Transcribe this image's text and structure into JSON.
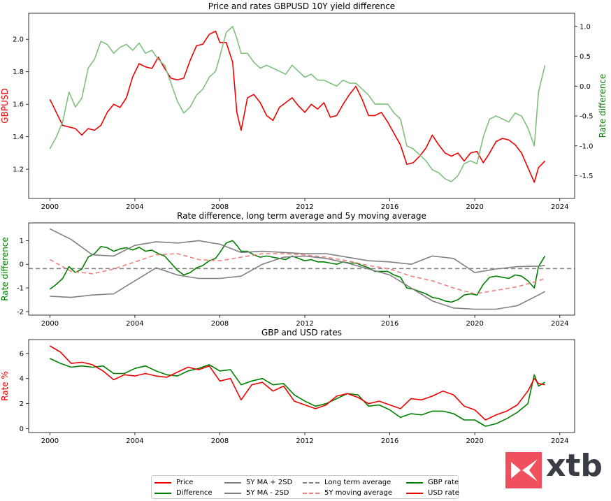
{
  "chart_data": [
    {
      "type": "line",
      "title": "Price and rates GBPUSD 10Y yield difference",
      "ylabel": "GBPUSD",
      "ylabel_right": "Rate difference",
      "xlim": [
        1999.0,
        2024.7
      ],
      "ylim": [
        1.02,
        2.16
      ],
      "ylim_right": [
        -1.88,
        1.22
      ],
      "xticks": [
        2000,
        2004,
        2008,
        2012,
        2016,
        2020,
        2024
      ],
      "yticks": [
        1.2,
        1.4,
        1.6,
        1.8,
        2.0
      ],
      "yticks_right": [
        -1.5,
        -1.0,
        -0.5,
        0.0,
        0.5,
        1.0
      ],
      "series": [
        {
          "name": "Price",
          "axis": "left",
          "color": "#ee0000",
          "x": [
            2000.0,
            2000.3,
            2000.6,
            2000.9,
            2001.2,
            2001.5,
            2001.8,
            2002.1,
            2002.4,
            2002.7,
            2003.0,
            2003.3,
            2003.6,
            2003.9,
            2004.2,
            2004.5,
            2004.8,
            2005.1,
            2005.4,
            2005.7,
            2006.0,
            2006.3,
            2006.6,
            2006.9,
            2007.2,
            2007.5,
            2007.8,
            2008.0,
            2008.3,
            2008.6,
            2008.8,
            2009.0,
            2009.3,
            2009.6,
            2009.9,
            2010.2,
            2010.5,
            2010.8,
            2011.1,
            2011.4,
            2011.7,
            2012.0,
            2012.3,
            2012.6,
            2012.9,
            2013.2,
            2013.5,
            2013.8,
            2014.1,
            2014.4,
            2014.7,
            2015.0,
            2015.3,
            2015.6,
            2015.9,
            2016.2,
            2016.5,
            2016.8,
            2017.1,
            2017.4,
            2017.7,
            2018.0,
            2018.3,
            2018.6,
            2018.9,
            2019.2,
            2019.5,
            2019.8,
            2020.1,
            2020.4,
            2020.7,
            2021.0,
            2021.3,
            2021.6,
            2021.9,
            2022.2,
            2022.5,
            2022.8,
            2023.0,
            2023.3
          ],
          "y": [
            1.63,
            1.55,
            1.47,
            1.46,
            1.45,
            1.41,
            1.45,
            1.44,
            1.47,
            1.55,
            1.6,
            1.58,
            1.64,
            1.77,
            1.85,
            1.83,
            1.82,
            1.89,
            1.82,
            1.76,
            1.75,
            1.76,
            1.87,
            1.96,
            1.97,
            2.03,
            2.05,
            1.98,
            1.98,
            1.86,
            1.55,
            1.44,
            1.64,
            1.66,
            1.61,
            1.53,
            1.5,
            1.58,
            1.61,
            1.64,
            1.59,
            1.55,
            1.6,
            1.57,
            1.61,
            1.52,
            1.53,
            1.6,
            1.66,
            1.71,
            1.63,
            1.53,
            1.53,
            1.55,
            1.49,
            1.42,
            1.35,
            1.23,
            1.24,
            1.28,
            1.33,
            1.41,
            1.35,
            1.3,
            1.28,
            1.3,
            1.25,
            1.3,
            1.31,
            1.24,
            1.3,
            1.37,
            1.39,
            1.38,
            1.35,
            1.3,
            1.21,
            1.12,
            1.21,
            1.25
          ]
        },
        {
          "name": "Rate difference",
          "axis": "right",
          "color": "#7fbf7f",
          "x": [
            2000.0,
            2000.3,
            2000.6,
            2000.9,
            2001.2,
            2001.5,
            2001.8,
            2002.1,
            2002.4,
            2002.7,
            2003.0,
            2003.3,
            2003.6,
            2003.9,
            2004.2,
            2004.5,
            2004.8,
            2005.1,
            2005.4,
            2005.7,
            2006.0,
            2006.3,
            2006.6,
            2006.9,
            2007.2,
            2007.5,
            2007.8,
            2008.0,
            2008.3,
            2008.6,
            2008.8,
            2009.0,
            2009.3,
            2009.6,
            2009.9,
            2010.2,
            2010.5,
            2010.8,
            2011.1,
            2011.4,
            2011.7,
            2012.0,
            2012.3,
            2012.6,
            2012.9,
            2013.2,
            2013.5,
            2013.8,
            2014.1,
            2014.4,
            2014.7,
            2015.0,
            2015.3,
            2015.6,
            2015.9,
            2016.2,
            2016.5,
            2016.8,
            2017.1,
            2017.4,
            2017.7,
            2018.0,
            2018.3,
            2018.6,
            2018.9,
            2019.2,
            2019.5,
            2019.8,
            2020.1,
            2020.4,
            2020.7,
            2021.0,
            2021.3,
            2021.6,
            2021.9,
            2022.2,
            2022.5,
            2022.8,
            2023.0,
            2023.3
          ],
          "y": [
            -1.05,
            -0.85,
            -0.6,
            -0.1,
            -0.35,
            -0.2,
            0.3,
            0.45,
            0.75,
            0.7,
            0.55,
            0.65,
            0.7,
            0.6,
            0.72,
            0.55,
            0.6,
            0.45,
            0.35,
            0.05,
            -0.25,
            -0.45,
            -0.35,
            -0.15,
            -0.05,
            0.15,
            0.25,
            0.5,
            0.9,
            1.0,
            0.8,
            0.55,
            0.55,
            0.4,
            0.3,
            0.35,
            0.3,
            0.25,
            0.2,
            0.35,
            0.25,
            0.15,
            0.2,
            0.1,
            0.1,
            0.05,
            0.0,
            0.1,
            0.05,
            0.05,
            -0.05,
            -0.15,
            -0.3,
            -0.3,
            -0.3,
            -0.45,
            -0.55,
            -1.0,
            -1.05,
            -1.15,
            -1.25,
            -1.4,
            -1.45,
            -1.55,
            -1.6,
            -1.5,
            -1.3,
            -1.25,
            -1.3,
            -0.85,
            -0.55,
            -0.5,
            -0.55,
            -0.6,
            -0.45,
            -0.5,
            -0.7,
            -1.0,
            -0.1,
            0.35
          ]
        }
      ]
    },
    {
      "type": "line",
      "title": "Rate difference, long term average and 5y moving average",
      "ylabel": "Rate difference",
      "xlim": [
        1999.0,
        2024.7
      ],
      "ylim": [
        -2.15,
        1.75
      ],
      "xticks": [
        2000,
        2004,
        2008,
        2012,
        2016,
        2020,
        2024
      ],
      "yticks": [
        -2,
        -1,
        0,
        1
      ],
      "long_term_average": -0.18,
      "series": [
        {
          "name": "Difference",
          "color": "#008000",
          "x": [
            2000.0,
            2000.3,
            2000.6,
            2000.9,
            2001.2,
            2001.5,
            2001.8,
            2002.1,
            2002.4,
            2002.7,
            2003.0,
            2003.3,
            2003.6,
            2003.9,
            2004.2,
            2004.5,
            2004.8,
            2005.1,
            2005.4,
            2005.7,
            2006.0,
            2006.3,
            2006.6,
            2006.9,
            2007.2,
            2007.5,
            2007.8,
            2008.0,
            2008.3,
            2008.6,
            2008.8,
            2009.0,
            2009.3,
            2009.6,
            2009.9,
            2010.2,
            2010.5,
            2010.8,
            2011.1,
            2011.4,
            2011.7,
            2012.0,
            2012.3,
            2012.6,
            2012.9,
            2013.2,
            2013.5,
            2013.8,
            2014.1,
            2014.4,
            2014.7,
            2015.0,
            2015.3,
            2015.6,
            2015.9,
            2016.2,
            2016.5,
            2016.8,
            2017.1,
            2017.4,
            2017.7,
            2018.0,
            2018.3,
            2018.6,
            2018.9,
            2019.2,
            2019.5,
            2019.8,
            2020.1,
            2020.4,
            2020.7,
            2021.0,
            2021.3,
            2021.6,
            2021.9,
            2022.2,
            2022.5,
            2022.8,
            2023.0,
            2023.3
          ],
          "y": [
            -1.05,
            -0.85,
            -0.6,
            -0.1,
            -0.35,
            -0.2,
            0.3,
            0.45,
            0.75,
            0.7,
            0.55,
            0.65,
            0.7,
            0.6,
            0.72,
            0.55,
            0.6,
            0.45,
            0.35,
            0.05,
            -0.25,
            -0.45,
            -0.35,
            -0.15,
            -0.05,
            0.15,
            0.25,
            0.5,
            0.9,
            1.0,
            0.8,
            0.55,
            0.55,
            0.4,
            0.3,
            0.35,
            0.3,
            0.25,
            0.2,
            0.35,
            0.25,
            0.15,
            0.2,
            0.1,
            0.1,
            0.05,
            0.0,
            0.1,
            0.05,
            0.05,
            -0.05,
            -0.15,
            -0.3,
            -0.3,
            -0.3,
            -0.45,
            -0.55,
            -1.0,
            -1.05,
            -1.15,
            -1.25,
            -1.4,
            -1.45,
            -1.55,
            -1.6,
            -1.5,
            -1.3,
            -1.25,
            -1.3,
            -0.85,
            -0.55,
            -0.5,
            -0.55,
            -0.6,
            -0.45,
            -0.5,
            -0.7,
            -1.0,
            -0.1,
            0.35
          ]
        },
        {
          "name": "5Y MA + 2SD",
          "color": "#808080",
          "x": [
            2000,
            2001,
            2002,
            2003,
            2004,
            2005,
            2006,
            2007,
            2008,
            2009,
            2010,
            2011,
            2012,
            2013,
            2014,
            2015,
            2016,
            2017,
            2018,
            2019,
            2020,
            2021,
            2022,
            2023,
            2023.3
          ],
          "y": [
            1.5,
            1.05,
            0.4,
            0.35,
            0.8,
            0.95,
            0.9,
            1.0,
            0.85,
            0.5,
            0.55,
            0.5,
            0.45,
            0.45,
            0.3,
            0.15,
            0.1,
            0.0,
            0.35,
            0.25,
            -0.35,
            -0.2,
            -0.1,
            -0.08,
            -0.05
          ]
        },
        {
          "name": "5Y MA - 2SD",
          "color": "#808080",
          "x": [
            2000,
            2001,
            2002,
            2003,
            2004,
            2005,
            2006,
            2007,
            2008,
            2009,
            2010,
            2011,
            2012,
            2013,
            2014,
            2015,
            2016,
            2017,
            2018,
            2019,
            2020,
            2021,
            2022,
            2023,
            2023.3
          ],
          "y": [
            -1.35,
            -1.4,
            -1.3,
            -1.25,
            -0.7,
            -0.15,
            -0.45,
            -0.6,
            -0.6,
            -0.5,
            0.0,
            0.3,
            0.35,
            0.25,
            0.05,
            -0.2,
            -0.45,
            -1.0,
            -1.55,
            -1.85,
            -1.9,
            -1.9,
            -1.75,
            -1.3,
            -1.15
          ]
        },
        {
          "name": "5Y moving average",
          "color": "#f08080",
          "dashed": true,
          "x": [
            2000,
            2001,
            2002,
            2003,
            2004,
            2005,
            2006,
            2007,
            2008,
            2009,
            2010,
            2011,
            2012,
            2013,
            2014,
            2015,
            2016,
            2017,
            2018,
            2019,
            2020,
            2021,
            2022,
            2023,
            2023.3
          ],
          "y": [
            0.2,
            -0.3,
            -0.4,
            -0.2,
            0.1,
            0.4,
            0.45,
            0.2,
            0.15,
            0.3,
            0.45,
            0.45,
            0.4,
            0.3,
            0.15,
            -0.05,
            -0.2,
            -0.5,
            -0.7,
            -1.0,
            -1.25,
            -1.1,
            -0.95,
            -0.7,
            -0.6
          ]
        }
      ]
    },
    {
      "type": "line",
      "title": "GBP and USD rates",
      "ylabel": "Rate %",
      "xlim": [
        1999.0,
        2024.7
      ],
      "ylim": [
        -0.3,
        7.1
      ],
      "xticks": [
        2000,
        2004,
        2008,
        2012,
        2016,
        2020,
        2024
      ],
      "yticks": [
        0,
        2,
        4,
        6
      ],
      "series": [
        {
          "name": "GBP rate",
          "color": "#008000",
          "x": [
            2000.0,
            2000.5,
            2001.0,
            2001.5,
            2002.0,
            2002.5,
            2003.0,
            2003.5,
            2004.0,
            2004.5,
            2005.0,
            2005.5,
            2006.0,
            2006.5,
            2007.0,
            2007.5,
            2008.0,
            2008.5,
            2009.0,
            2009.5,
            2010.0,
            2010.5,
            2011.0,
            2011.5,
            2012.0,
            2012.5,
            2013.0,
            2013.5,
            2014.0,
            2014.5,
            2015.0,
            2015.5,
            2016.0,
            2016.5,
            2017.0,
            2017.5,
            2018.0,
            2018.5,
            2019.0,
            2019.5,
            2020.0,
            2020.5,
            2021.0,
            2021.5,
            2022.0,
            2022.5,
            2022.8,
            2023.0,
            2023.3
          ],
          "y": [
            5.6,
            5.2,
            4.9,
            5.0,
            4.9,
            5.0,
            4.4,
            4.4,
            4.8,
            5.0,
            4.6,
            4.3,
            4.2,
            4.6,
            4.8,
            5.1,
            4.6,
            4.7,
            3.5,
            3.8,
            4.0,
            3.5,
            3.6,
            2.7,
            2.2,
            1.8,
            2.0,
            2.4,
            2.8,
            2.7,
            1.8,
            1.9,
            1.5,
            0.9,
            1.2,
            1.1,
            1.4,
            1.4,
            1.2,
            0.7,
            0.7,
            0.2,
            0.4,
            0.8,
            1.3,
            2.0,
            4.3,
            3.4,
            3.7
          ]
        },
        {
          "name": "USD rate",
          "color": "#ee0000",
          "x": [
            2000.0,
            2000.5,
            2001.0,
            2001.5,
            2002.0,
            2002.5,
            2003.0,
            2003.5,
            2004.0,
            2004.5,
            2005.0,
            2005.5,
            2006.0,
            2006.5,
            2007.0,
            2007.5,
            2008.0,
            2008.5,
            2009.0,
            2009.5,
            2010.0,
            2010.5,
            2011.0,
            2011.5,
            2012.0,
            2012.5,
            2013.0,
            2013.5,
            2014.0,
            2014.5,
            2015.0,
            2015.5,
            2016.0,
            2016.5,
            2017.0,
            2017.5,
            2018.0,
            2018.5,
            2019.0,
            2019.5,
            2020.0,
            2020.5,
            2021.0,
            2021.5,
            2022.0,
            2022.5,
            2022.8,
            2023.0,
            2023.3
          ],
          "y": [
            6.6,
            6.1,
            5.2,
            5.3,
            5.1,
            4.6,
            3.9,
            4.3,
            4.2,
            4.4,
            4.2,
            4.1,
            4.5,
            4.9,
            4.7,
            5.0,
            3.8,
            4.0,
            2.3,
            3.5,
            3.7,
            3.0,
            3.4,
            2.2,
            1.9,
            1.6,
            1.9,
            2.6,
            2.8,
            2.5,
            2.0,
            2.2,
            1.9,
            1.6,
            2.4,
            2.3,
            2.6,
            3.0,
            2.7,
            1.8,
            1.5,
            0.7,
            1.1,
            1.4,
            1.9,
            3.0,
            4.0,
            3.6,
            3.5
          ]
        }
      ]
    }
  ],
  "legend": [
    {
      "label": "Price",
      "color": "#ee0000",
      "dashed": false
    },
    {
      "label": "5Y MA + 2SD",
      "color": "#808080",
      "dashed": false
    },
    {
      "label": "Long term average",
      "color": "#808080",
      "dashed": true
    },
    {
      "label": "GBP rate",
      "color": "#008000",
      "dashed": false
    },
    {
      "label": "Difference",
      "color": "#008000",
      "dashed": false
    },
    {
      "label": "5Y MA - 2SD",
      "color": "#808080",
      "dashed": false
    },
    {
      "label": "5Y moving average",
      "color": "#f08080",
      "dashed": true
    },
    {
      "label": "USD rate",
      "color": "#ee0000",
      "dashed": false
    }
  ],
  "logo": {
    "text": "xtb",
    "color": "#f0505d",
    "text_color": "#3a3d46"
  }
}
